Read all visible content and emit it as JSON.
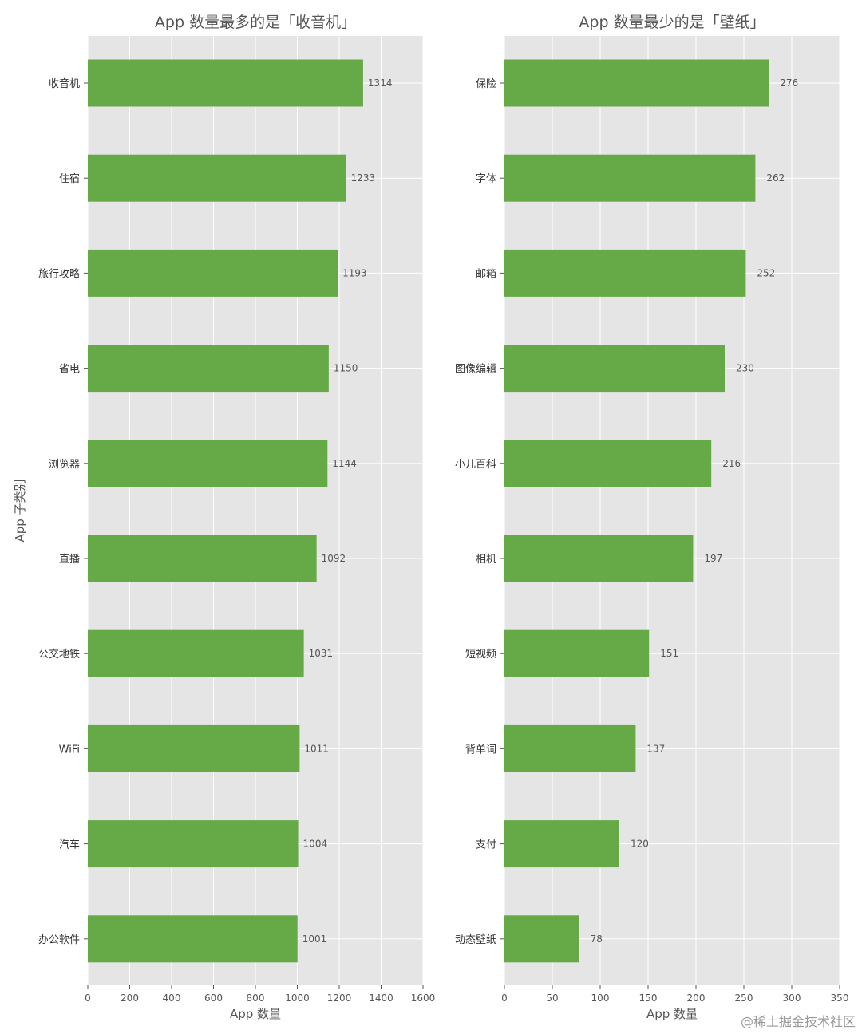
{
  "watermark": "@稀土掘金技术社区",
  "chart_data": [
    {
      "type": "bar",
      "orientation": "horizontal",
      "title": "App 数量最多的是「收音机」",
      "xlabel": "App 数量",
      "ylabel": "App 子类别",
      "xlim": [
        0,
        1600
      ],
      "xticks": [
        0,
        200,
        400,
        600,
        800,
        1000,
        1200,
        1400,
        1600
      ],
      "categories": [
        "收音机",
        "住宿",
        "旅行攻略",
        "省电",
        "浏览器",
        "直播",
        "公交地铁",
        "WiFi",
        "汽车",
        "办公软件"
      ],
      "values": [
        1314,
        1233,
        1193,
        1150,
        1144,
        1092,
        1031,
        1011,
        1004,
        1001
      ],
      "bar_color": "#66aa47",
      "grid": true
    },
    {
      "type": "bar",
      "orientation": "horizontal",
      "title": "App 数量最少的是「壁纸」",
      "xlabel": "App 数量",
      "ylabel": "",
      "xlim": [
        0,
        350
      ],
      "xticks": [
        0,
        50,
        100,
        150,
        200,
        250,
        300,
        350
      ],
      "categories": [
        "保险",
        "字体",
        "邮箱",
        "图像编辑",
        "小儿百科",
        "相机",
        "短视频",
        "背单词",
        "支付",
        "动态壁纸"
      ],
      "values": [
        276,
        262,
        252,
        230,
        216,
        197,
        151,
        137,
        120,
        78
      ],
      "bar_color": "#66aa47",
      "grid": true
    }
  ]
}
